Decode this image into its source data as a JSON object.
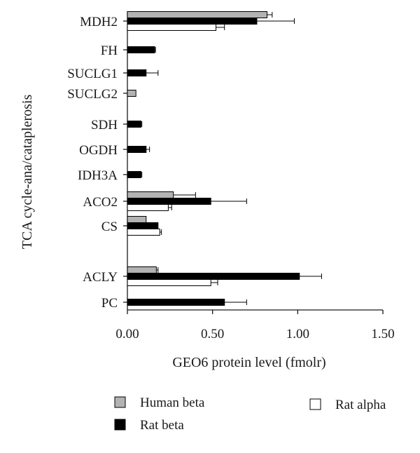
{
  "chart_data": {
    "type": "bar",
    "orientation": "horizontal",
    "categories": [
      "MDH2",
      "FH",
      "SUCLG1",
      "SUCLG2",
      "SDH",
      "OGDH",
      "IDH3A",
      "ACO2",
      "CS",
      "ACLY",
      "PC"
    ],
    "series": [
      {
        "name": "Human beta",
        "color": "#b3b3b3",
        "values": [
          0.82,
          null,
          null,
          0.05,
          null,
          null,
          null,
          0.27,
          0.11,
          0.17,
          null
        ],
        "errors": [
          0.03,
          null,
          null,
          null,
          null,
          null,
          null,
          0.13,
          null,
          0.01,
          null
        ]
      },
      {
        "name": "Rat beta",
        "color": "#000000",
        "values": [
          0.76,
          0.16,
          0.11,
          null,
          0.08,
          0.11,
          0.08,
          0.49,
          0.18,
          1.01,
          0.57
        ],
        "errors": [
          0.22,
          0.005,
          0.07,
          null,
          0.005,
          0.02,
          0.005,
          0.21,
          null,
          0.13,
          0.13
        ]
      },
      {
        "name": "Rat alpha",
        "color": "#ffffff",
        "values": [
          0.52,
          null,
          null,
          null,
          null,
          null,
          null,
          0.24,
          0.19,
          0.49,
          null
        ],
        "errors": [
          0.05,
          null,
          null,
          null,
          null,
          null,
          null,
          0.02,
          0.01,
          0.04,
          null
        ]
      }
    ],
    "xlabel": "GEO6 protein level (fmolr)",
    "ylabel": "TCA cycle-ana/cataplerosis",
    "xlim": [
      0,
      1.5
    ],
    "xticks": [
      "0.00",
      "0.50",
      "1.00",
      "1.50"
    ],
    "grid": false,
    "legend": "bottom"
  }
}
